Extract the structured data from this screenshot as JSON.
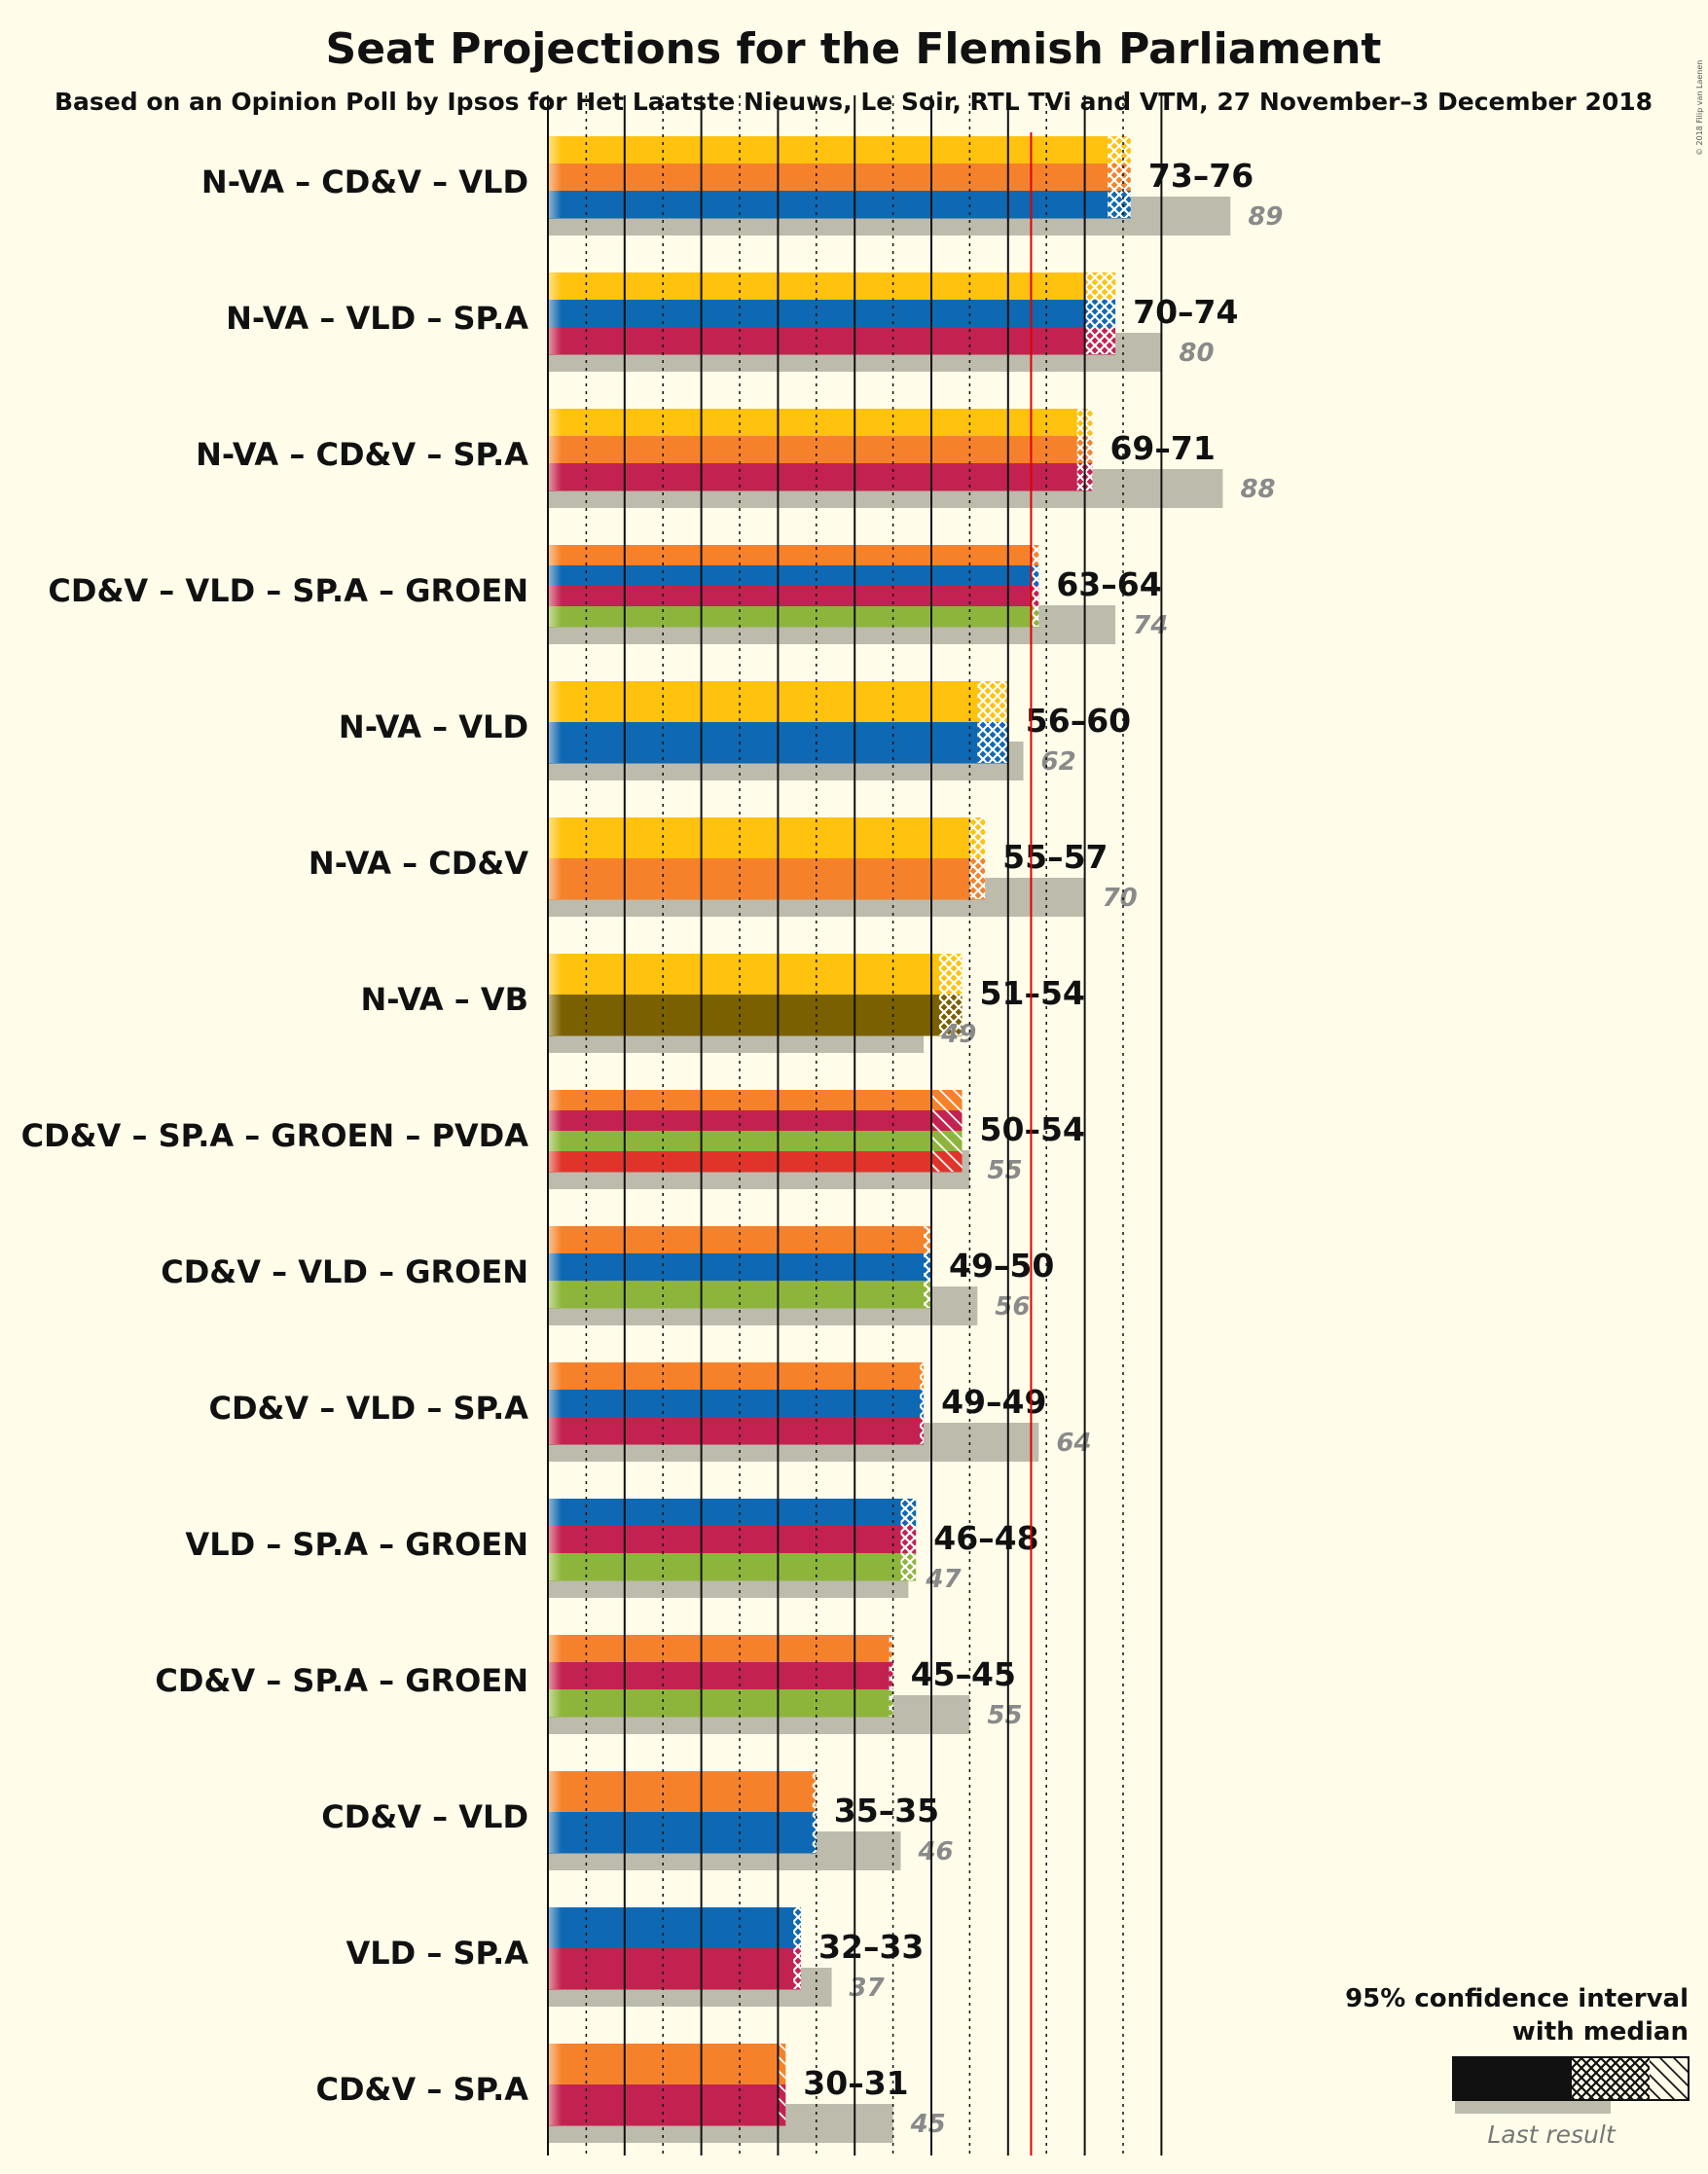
{
  "title": "Seat Projections for the Flemish Parliament",
  "subtitle": "Based on an Opinion Poll by Ipsos for Het Laatste Nieuws, Le Soir, RTL TVi and VTM, 27 November–3 December 2018",
  "copyright": "© 2018 Filip van Laenen",
  "legend": {
    "ci_label_line1": "95% confidence interval",
    "ci_label_line2": "with median",
    "last_result_label": "Last result"
  },
  "colors": {
    "N-VA": "#FFC20E",
    "CD&V": "#F5822A",
    "VLD": "#0F68B3",
    "SP.A": "#C32250",
    "GROEN": "#8DB53C",
    "VB": "#7A6000",
    "PVDA": "#E0342B",
    "last_result": "#bdbbac",
    "majority_line": "#e00000",
    "background": "#fffdea"
  },
  "chart_data": {
    "type": "bar",
    "orientation": "horizontal",
    "majority_threshold": 63,
    "x_range": [
      0,
      124
    ],
    "categories": [
      "N-VA – CD&V – VLD",
      "N-VA – VLD – SP.A",
      "N-VA – CD&V – SP.A",
      "CD&V – VLD – SP.A – GROEN",
      "N-VA – VLD",
      "N-VA – CD&V",
      "N-VA – VB",
      "CD&V – SP.A – GROEN – PVDA",
      "CD&V – VLD – GROEN",
      "CD&V – VLD – SP.A",
      "VLD – SP.A – GROEN",
      "CD&V – SP.A – GROEN",
      "CD&V – VLD",
      "VLD – SP.A",
      "CD&V – SP.A"
    ],
    "coalitions": [
      {
        "parties": [
          "N-VA",
          "CD&V",
          "VLD"
        ],
        "low": 73,
        "high": 76,
        "range_label": "73–76",
        "last": 89,
        "last_label": "89"
      },
      {
        "parties": [
          "N-VA",
          "VLD",
          "SP.A"
        ],
        "low": 70,
        "high": 74,
        "range_label": "70–74",
        "last": 80,
        "last_label": "80"
      },
      {
        "parties": [
          "N-VA",
          "CD&V",
          "SP.A"
        ],
        "low": 69,
        "high": 71,
        "range_label": "69–71",
        "last": 88,
        "last_label": "88"
      },
      {
        "parties": [
          "CD&V",
          "VLD",
          "SP.A",
          "GROEN"
        ],
        "low": 63,
        "high": 64,
        "range_label": "63–64",
        "last": 74,
        "last_label": "74"
      },
      {
        "parties": [
          "N-VA",
          "VLD"
        ],
        "low": 56,
        "high": 60,
        "range_label": "56–60",
        "last": 62,
        "last_label": "62"
      },
      {
        "parties": [
          "N-VA",
          "CD&V"
        ],
        "low": 55,
        "high": 57,
        "range_label": "55–57",
        "last": 70,
        "last_label": "70"
      },
      {
        "parties": [
          "N-VA",
          "VB"
        ],
        "low": 51,
        "high": 54,
        "range_label": "51–54",
        "last": 49,
        "last_label": "49"
      },
      {
        "parties": [
          "CD&V",
          "SP.A",
          "GROEN",
          "PVDA"
        ],
        "low": 50,
        "high": 54,
        "range_label": "50–54",
        "last": 55,
        "last_label": "55",
        "hatch": "diagonal"
      },
      {
        "parties": [
          "CD&V",
          "VLD",
          "GROEN"
        ],
        "low": 49,
        "high": 50,
        "range_label": "49–50",
        "last": 56,
        "last_label": "56"
      },
      {
        "parties": [
          "CD&V",
          "VLD",
          "SP.A"
        ],
        "low": 49,
        "high": 49,
        "range_label": "49–49",
        "last": 64,
        "last_label": "64"
      },
      {
        "parties": [
          "VLD",
          "SP.A",
          "GROEN"
        ],
        "low": 46,
        "high": 48,
        "range_label": "46–48",
        "last": 47,
        "last_label": "47"
      },
      {
        "parties": [
          "CD&V",
          "SP.A",
          "GROEN"
        ],
        "low": 45,
        "high": 45,
        "range_label": "45–45",
        "last": 55,
        "last_label": "55"
      },
      {
        "parties": [
          "CD&V",
          "VLD"
        ],
        "low": 35,
        "high": 35,
        "range_label": "35–35",
        "last": 46,
        "last_label": "46"
      },
      {
        "parties": [
          "VLD",
          "SP.A"
        ],
        "low": 32,
        "high": 33,
        "range_label": "32–33",
        "last": 37,
        "last_label": "37"
      },
      {
        "parties": [
          "CD&V",
          "SP.A"
        ],
        "low": 30,
        "high": 31,
        "range_label": "30–31",
        "last": 45,
        "last_label": "45",
        "hatch": "diagonal"
      }
    ]
  }
}
